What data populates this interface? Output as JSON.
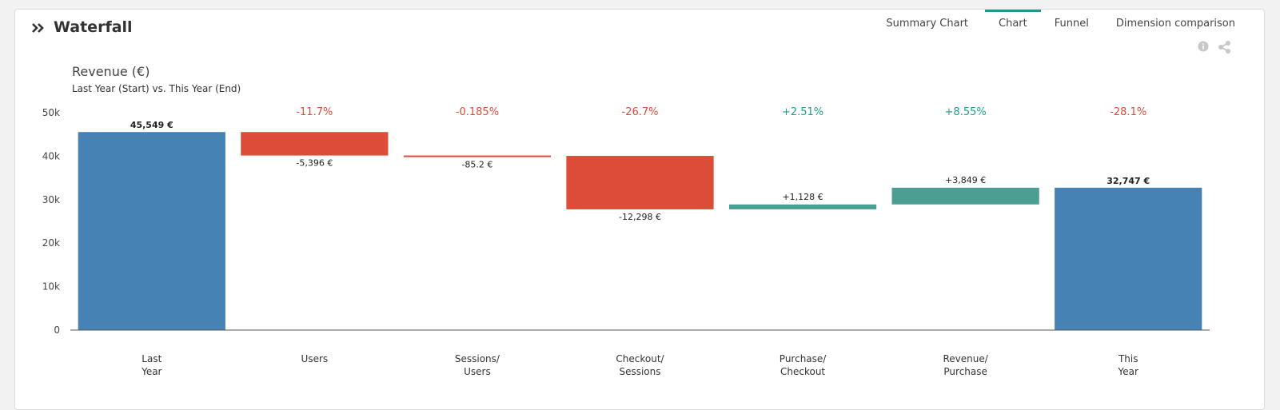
{
  "header": {
    "title": "Waterfall",
    "tabs": [
      {
        "label": "Summary Chart",
        "active": false
      },
      {
        "label": "Chart",
        "active": true
      },
      {
        "label": "Funnel",
        "active": false
      },
      {
        "label": "Dimension comparison",
        "active": false
      }
    ],
    "icons": [
      "info-icon",
      "share-icon"
    ]
  },
  "chart_data": {
    "type": "bar",
    "subtype": "waterfall",
    "title": "Revenue (€)",
    "subtitle": "Last Year (Start) vs. This Year (End)",
    "ylim": [
      0,
      50000
    ],
    "yticks": [
      "0",
      "10k",
      "20k",
      "30k",
      "40k",
      "50k"
    ],
    "ytick_values": [
      0,
      10000,
      20000,
      30000,
      40000,
      50000
    ],
    "grid": false,
    "colors": {
      "total": "#4682b4",
      "decrease": "#dd4b39",
      "increase": "#4a9e92",
      "pct_decrease": "#dd4b39",
      "pct_increase": "#1e9e8a"
    },
    "bars": [
      {
        "category": [
          "Last",
          "Year"
        ],
        "kind": "total",
        "start": 0,
        "end": 45549,
        "label": "45,549 €",
        "pct": ""
      },
      {
        "category": [
          "Users"
        ],
        "kind": "decrease",
        "start": 45549,
        "end": 40153,
        "label": "-5,396 €",
        "pct": "-11.7%"
      },
      {
        "category": [
          "Sessions/",
          "Users"
        ],
        "kind": "decrease",
        "start": 40153,
        "end": 40068,
        "label": "-85.2 €",
        "pct": "-0.185%"
      },
      {
        "category": [
          "Checkout/",
          "Sessions"
        ],
        "kind": "decrease",
        "start": 40068,
        "end": 27770,
        "label": "-12,298 €",
        "pct": "-26.7%"
      },
      {
        "category": [
          "Purchase/",
          "Checkout"
        ],
        "kind": "increase",
        "start": 27770,
        "end": 28898,
        "label": "+1,128 €",
        "pct": "+2.51%"
      },
      {
        "category": [
          "Revenue/",
          "Purchase"
        ],
        "kind": "increase",
        "start": 28898,
        "end": 32747,
        "label": "+3,849 €",
        "pct": "+8.55%"
      },
      {
        "category": [
          "This",
          "Year"
        ],
        "kind": "total",
        "start": 0,
        "end": 32747,
        "label": "32,747 €",
        "pct": "-28.1%"
      }
    ]
  }
}
